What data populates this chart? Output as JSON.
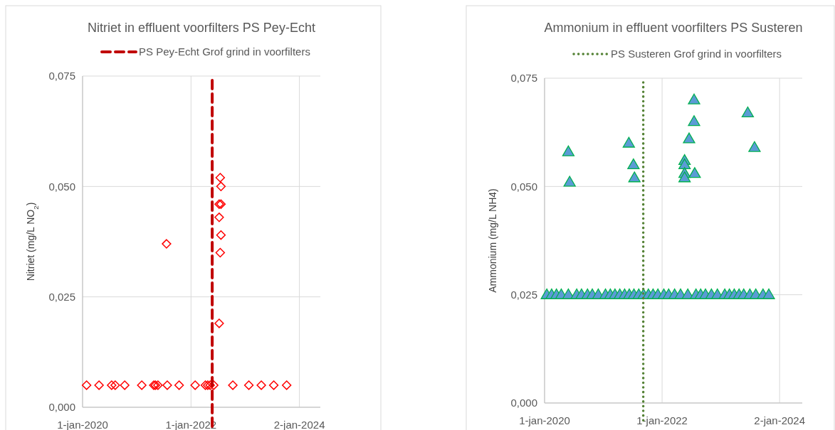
{
  "chart_data": [
    {
      "type": "scatter",
      "title": "Nitriet in effluent voorfilters PS Pey-Echt",
      "ylabel": "Nitriet (mg/L NO$_{2}$)",
      "marker": "diamond",
      "grid": true,
      "legend": "top",
      "xlim": [
        "2020-01-01",
        "2024-05-22"
      ],
      "xticks": [
        {
          "value": "2020-01-01",
          "label": "1-jan-2020"
        },
        {
          "value": "2022-01-01",
          "label": "1-jan-2022"
        },
        {
          "value": "2024-01-02",
          "label": "2-jan-2024"
        }
      ],
      "ylim": [
        0,
        0.075
      ],
      "yticks": [
        {
          "value": 0,
          "label": "0,000"
        },
        {
          "value": 0.025,
          "label": "0,025"
        },
        {
          "value": 0.05,
          "label": "0,050"
        },
        {
          "value": 0.075,
          "label": "0,075"
        }
      ],
      "ref_lines": [
        {
          "axis": "x",
          "value": "2022-05-24",
          "label": "PS Pey-Echt Grof grind in voorfilters",
          "color": "#c00000",
          "line_style": "dashed"
        }
      ],
      "series": [
        {
          "color": "#ff0000",
          "x": [
            "2020-01-28",
            "2020-04-21",
            "2020-07-15",
            "2020-08-08",
            "2020-10-11",
            "2021-02-03",
            "2021-04-25",
            "2021-05-06",
            "2021-05-23",
            "2021-07-25",
            "2021-10-13",
            "2022-01-29",
            "2022-04-08",
            "2022-04-24",
            "2022-05-10",
            "2022-06-03",
            "2022-10-10",
            "2023-01-26",
            "2023-04-20",
            "2023-07-13",
            "2023-10-08",
            "2021-07-20",
            "2022-07-17",
            "2022-07-22",
            "2022-07-10",
            "2022-07-22",
            "2022-07-10",
            "2022-07-22",
            "2022-07-17",
            "2022-07-10"
          ],
          "values": [
            0.005,
            0.005,
            0.005,
            0.005,
            0.005,
            0.005,
            0.005,
            0.005,
            0.005,
            0.005,
            0.005,
            0.005,
            0.005,
            0.005,
            0.005,
            0.005,
            0.005,
            0.005,
            0.005,
            0.005,
            0.005,
            0.037,
            0.052,
            0.05,
            0.046,
            0.046,
            0.043,
            0.039,
            0.035,
            0.019
          ]
        }
      ]
    },
    {
      "type": "scatter",
      "title": "Ammonium in effluent voorfilters PS Susteren",
      "ylabel": "Ammonium (mg/L NH4)",
      "marker": "triangle",
      "grid": true,
      "legend": "top",
      "xlim": [
        "2020-01-01",
        "2024-05-22"
      ],
      "xticks": [
        {
          "value": "2020-01-01",
          "label": "1-jan-2020"
        },
        {
          "value": "2022-01-01",
          "label": "1-jan-2022"
        },
        {
          "value": "2024-01-02",
          "label": "2-jan-2024"
        }
      ],
      "ylim": [
        0,
        0.075
      ],
      "yticks": [
        {
          "value": 0,
          "label": "0,000"
        },
        {
          "value": 0.025,
          "label": "0,025"
        },
        {
          "value": 0.05,
          "label": "0,050"
        },
        {
          "value": 0.075,
          "label": "0,075"
        }
      ],
      "ref_lines": [
        {
          "axis": "x",
          "value": "2021-09-06",
          "label": "PS Susteren Grof grind in voorfilters",
          "color": "#548235",
          "line_style": "dotted"
        }
      ],
      "series": [
        {
          "color": "#5b9bd5",
          "x": [
            "2020-01-15",
            "2020-02-14",
            "2020-03-15",
            "2020-04-14",
            "2020-05-28",
            "2020-07-19",
            "2020-08-18",
            "2020-09-24",
            "2020-10-24",
            "2020-11-30",
            "2021-01-14",
            "2021-02-13",
            "2021-03-14",
            "2021-04-13",
            "2021-05-13",
            "2021-06-11",
            "2021-07-10",
            "2021-08-09",
            "2021-09-08",
            "2021-10-08",
            "2021-11-06",
            "2021-12-06",
            "2022-01-12",
            "2022-02-11",
            "2022-03-20",
            "2022-04-26",
            "2022-06-10",
            "2022-07-31",
            "2022-08-29",
            "2022-09-28",
            "2022-11-04",
            "2022-12-11",
            "2023-01-26",
            "2023-02-24",
            "2023-03-26",
            "2023-04-25",
            "2023-05-24",
            "2023-07-01",
            "2023-08-07",
            "2023-09-21",
            "2023-10-27",
            "2020-05-28",
            "2020-06-05",
            "2021-06-08",
            "2021-07-07",
            "2021-07-13",
            "2022-07-19",
            "2022-07-19",
            "2022-06-18",
            "2022-05-21",
            "2022-05-21",
            "2022-05-21",
            "2022-05-21",
            "2022-07-23",
            "2023-06-18",
            "2023-07-30"
          ],
          "values": [
            0.025,
            0.025,
            0.025,
            0.025,
            0.025,
            0.025,
            0.025,
            0.025,
            0.025,
            0.025,
            0.025,
            0.025,
            0.025,
            0.025,
            0.025,
            0.025,
            0.025,
            0.025,
            0.025,
            0.025,
            0.025,
            0.025,
            0.025,
            0.025,
            0.025,
            0.025,
            0.025,
            0.025,
            0.025,
            0.025,
            0.025,
            0.025,
            0.025,
            0.025,
            0.025,
            0.025,
            0.025,
            0.025,
            0.025,
            0.025,
            0.025,
            0.058,
            0.051,
            0.06,
            0.055,
            0.052,
            0.07,
            0.065,
            0.061,
            0.056,
            0.055,
            0.053,
            0.052,
            0.053,
            0.067,
            0.059
          ]
        }
      ]
    }
  ]
}
